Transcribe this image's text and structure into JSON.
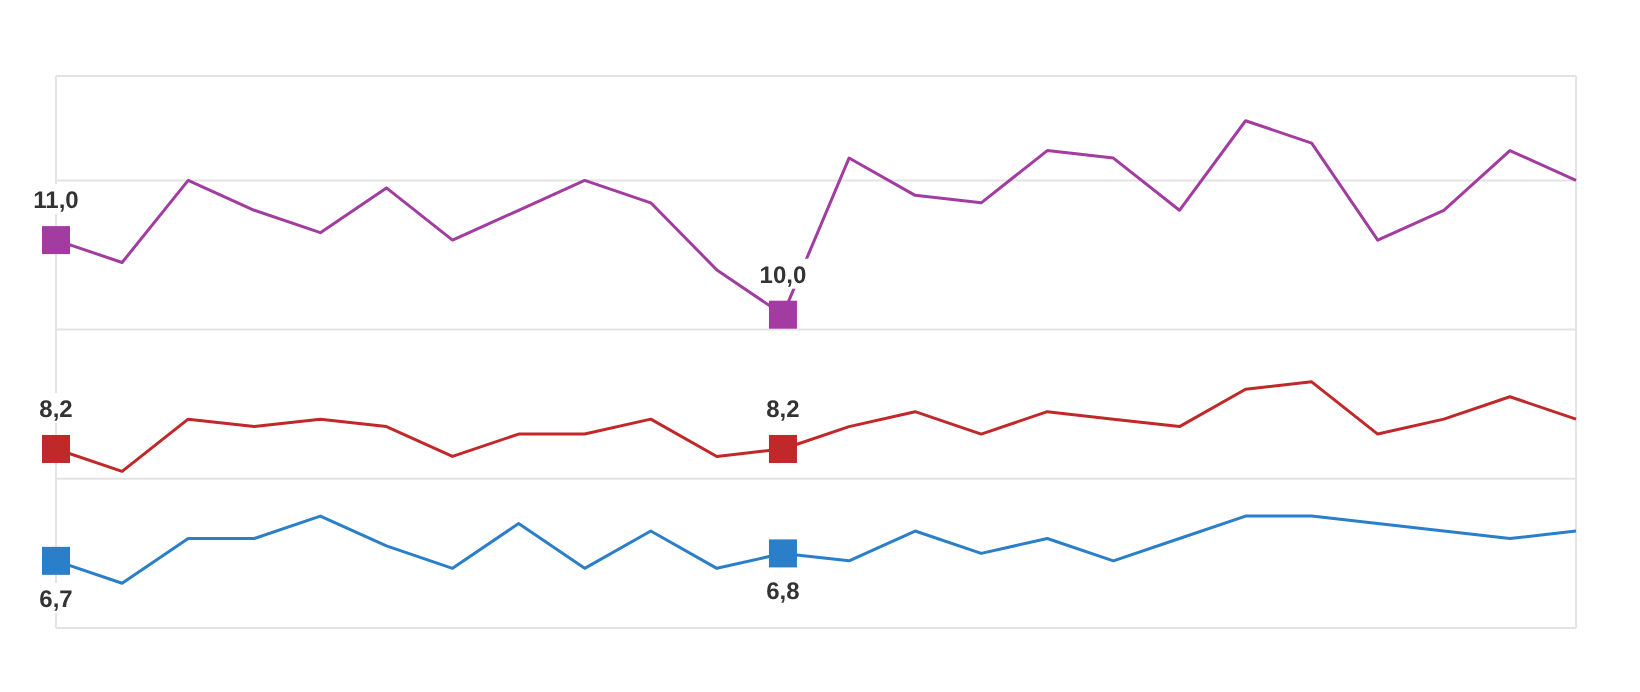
{
  "chart_data": {
    "type": "line",
    "categories": [
      null,
      null,
      null,
      null,
      null,
      null,
      null,
      null,
      null,
      null,
      null,
      null,
      null,
      null,
      null,
      null,
      null,
      null,
      null,
      null,
      null,
      null,
      null,
      null
    ],
    "grid": true,
    "tick_labels": false,
    "series": [
      {
        "color": "#a23ca0",
        "values": [
          11.0,
          10.7,
          11.8,
          11.4,
          11.1,
          11.7,
          11.0,
          11.4,
          11.8,
          11.5,
          10.6,
          10.0,
          12.1,
          11.6,
          11.5,
          12.2,
          12.1,
          11.4,
          12.6,
          12.3,
          11.0,
          11.4,
          12.2,
          11.8
        ],
        "value_labels": [
          "11,0",
          null,
          null,
          null,
          null,
          null,
          null,
          null,
          null,
          null,
          null,
          "10,0",
          null,
          null,
          null,
          null,
          null,
          null,
          null,
          null,
          null,
          null,
          null,
          null
        ]
      },
      {
        "color": "#c0282a",
        "values": [
          8.2,
          7.9,
          8.6,
          8.5,
          8.6,
          8.5,
          8.1,
          8.4,
          8.4,
          8.6,
          8.1,
          8.2,
          8.5,
          8.7,
          8.4,
          8.7,
          8.6,
          8.5,
          9.0,
          9.1,
          8.4,
          8.6,
          8.9,
          8.6
        ],
        "value_labels": [
          "8,2",
          null,
          null,
          null,
          null,
          null,
          null,
          null,
          null,
          null,
          null,
          "8,2",
          null,
          null,
          null,
          null,
          null,
          null,
          null,
          null,
          null,
          null,
          null,
          null
        ]
      },
      {
        "color": "#2a7fc8",
        "values": [
          6.7,
          6.4,
          7.0,
          7.0,
          7.3,
          6.9,
          6.6,
          7.2,
          6.6,
          7.1,
          6.6,
          6.8,
          6.7,
          7.1,
          6.8,
          7.0,
          6.7,
          7.0,
          7.3,
          7.3,
          7.2,
          7.1,
          7.0,
          7.1
        ],
        "value_labels": [
          "6,7",
          null,
          null,
          null,
          null,
          null,
          null,
          null,
          null,
          null,
          null,
          "6,8",
          null,
          null,
          null,
          null,
          null,
          null,
          null,
          null,
          null,
          null,
          null,
          null
        ]
      }
    ]
  }
}
